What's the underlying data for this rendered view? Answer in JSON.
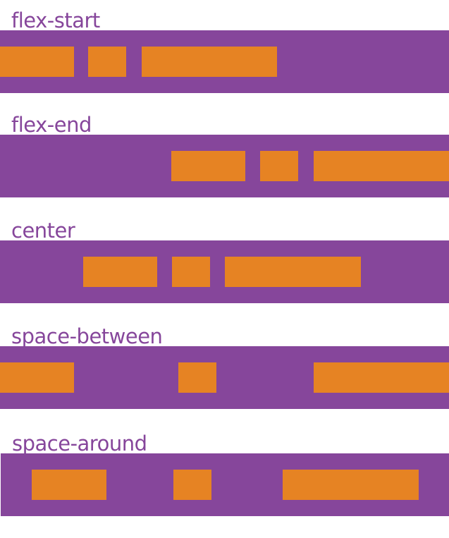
{
  "colors": {
    "container": "#86469b",
    "item": "#e68323",
    "label": "#86469b"
  },
  "examples": [
    {
      "label": "flex-start"
    },
    {
      "label": "flex-end"
    },
    {
      "label": "center"
    },
    {
      "label": "space-between"
    },
    {
      "label": "space-around"
    }
  ]
}
